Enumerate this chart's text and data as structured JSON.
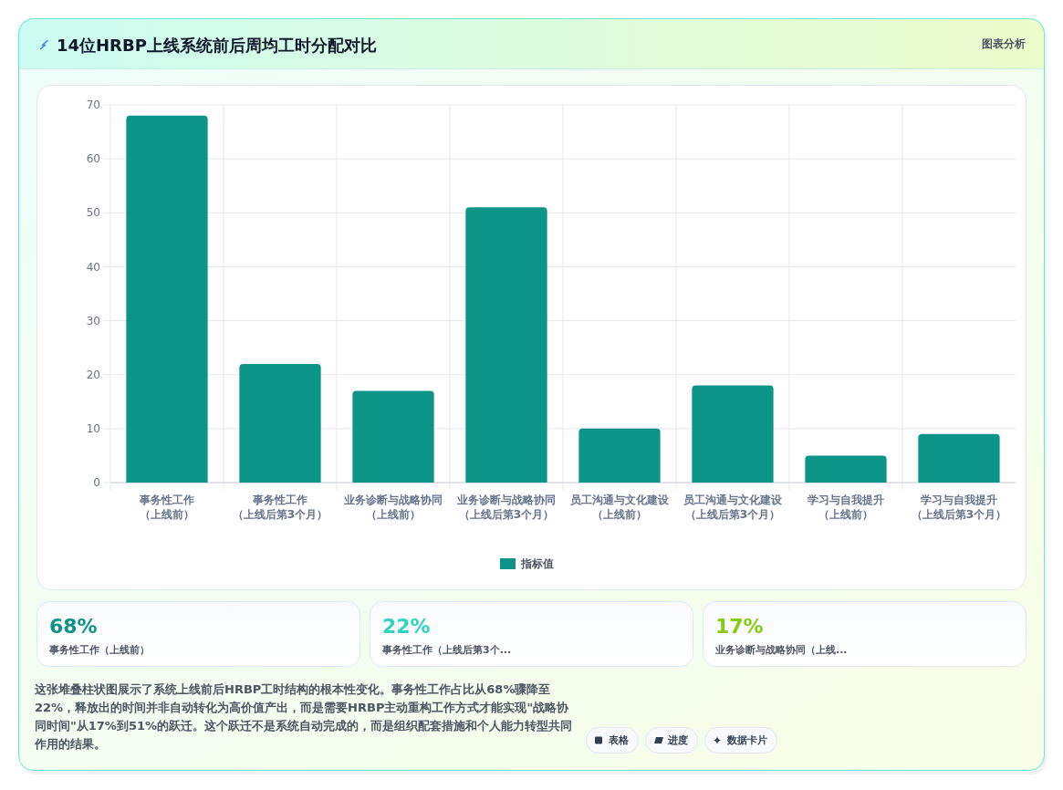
{
  "chart_data": [
    {
      "type": "bar",
      "title": "14位HRBP上线系统前后周均工时分配对比",
      "categories": [
        "事务性工作（上线前）",
        "事务性工作（上线后第3个月）",
        "业务诊断与战略协同（上线前）",
        "业务诊断与战略协同（上线后第3个月）",
        "员工沟通与文化建设（上线前）",
        "员工沟通与文化建设（上线后第3个月）",
        "学习与自我提升（上线前）",
        "学习与自我提升（上线后第3个月）"
      ],
      "series": [
        {
          "name": "指标值",
          "color": "#0d9488",
          "values": [
            68,
            22,
            17,
            51,
            10,
            18,
            5,
            9
          ]
        }
      ],
      "ylim": [
        0,
        70
      ],
      "yticks": [
        0,
        10,
        20,
        30,
        40,
        50,
        60,
        70
      ],
      "grid": true,
      "legend": "bottom",
      "annotations": [
        "图表分析",
        "这张堆叠柱状图展示了系统上线前后HRBP工时结构的根本性变化。事务性工作占比从68%骤降至22%，释放出的时间并非自动转化为高价值产出，而是需要HRBP主动重构工作方式才能实现\"战略协同时间\"从17%到51%的跃迁。这个跃迁不是系统自动完成的，而是组织配套措施和个人能力转型共同作用的结果。",
        "表格",
        "进度",
        "数据卡片"
      ]
    },
    {
      "type": "other",
      "categories": [
        "事务性工作（上线前）",
        "事务性工作（上线后第3个...",
        "业务诊断与战略协同（上线..."
      ],
      "value_labels": [
        "68%",
        "22%",
        "17%"
      ]
    }
  ]
}
